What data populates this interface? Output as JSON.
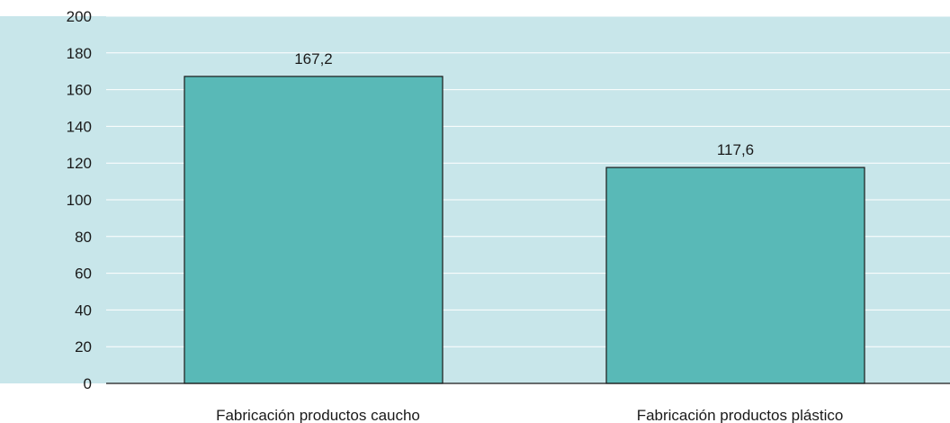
{
  "colors": {
    "plot_background": "#c8e6ea",
    "bar_fill": "#59b9b7",
    "bar_stroke": "#1a1a1a",
    "grid": "#ffffff",
    "axis": "#1a1a1a"
  },
  "chart_data": {
    "type": "bar",
    "title": "",
    "xlabel": "",
    "ylabel": "",
    "categories": [
      "Fabricación productos caucho",
      "Fabricación productos plástico"
    ],
    "values": [
      167.2,
      117.6
    ],
    "data_labels": [
      "167,2",
      "117,6"
    ],
    "ylim": [
      0,
      200
    ],
    "yticks": [
      0,
      20,
      40,
      60,
      80,
      100,
      120,
      140,
      160,
      180,
      200
    ],
    "grid": true,
    "legend": "none"
  }
}
